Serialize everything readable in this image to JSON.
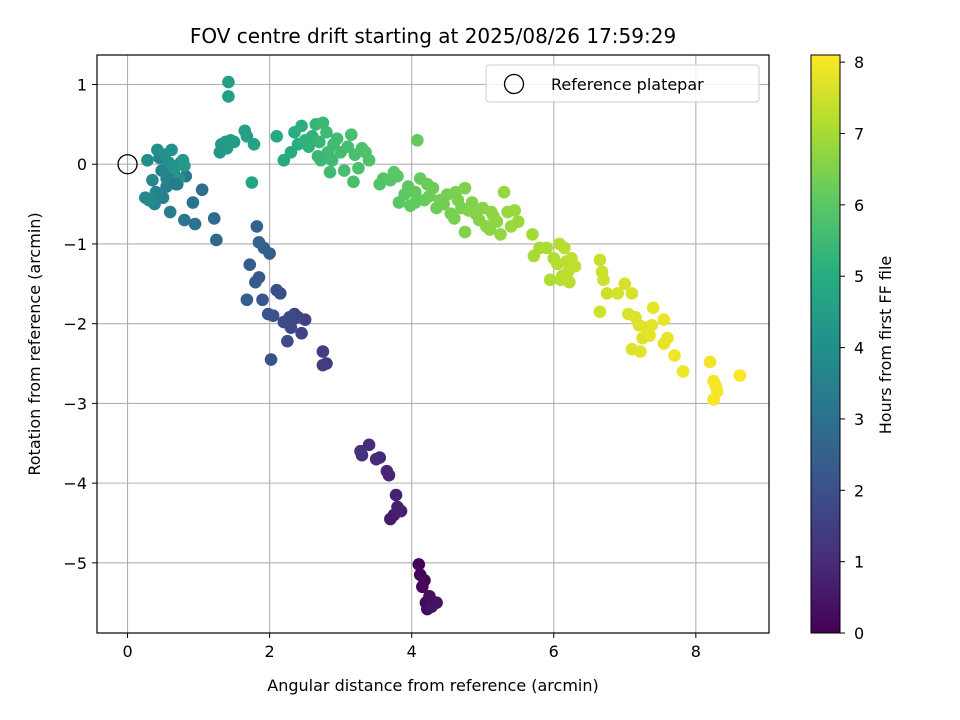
{
  "chart_data": {
    "type": "scatter",
    "title": "FOV centre drift starting at 2025/08/26 17:59:29",
    "xlabel": "Angular distance from reference (arcmin)",
    "ylabel": "Rotation from reference (arcmin)",
    "xlim": [
      -0.43,
      9.03
    ],
    "ylim": [
      -5.88,
      1.37
    ],
    "xticks": [
      0,
      2,
      4,
      6,
      8
    ],
    "yticks": [
      1,
      0,
      -1,
      -2,
      -3,
      -4,
      -5
    ],
    "xtick_labels": [
      "0",
      "2",
      "4",
      "6",
      "8"
    ],
    "ytick_labels": [
      "1",
      "0",
      "−1",
      "−2",
      "−3",
      "−4",
      "−5"
    ],
    "grid": true,
    "colormap": "viridis",
    "colorbar": {
      "label": "Hours from first FF file",
      "range": [
        0,
        8.1
      ],
      "ticks": [
        0,
        1,
        2,
        3,
        4,
        5,
        6,
        7,
        8
      ],
      "tick_labels": [
        "0",
        "1",
        "2",
        "3",
        "4",
        "5",
        "6",
        "7",
        "8"
      ]
    },
    "reference": {
      "x": 0,
      "y": 0,
      "label": "Reference platepar"
    },
    "legend": {
      "position": "top-right",
      "entries": [
        "Reference platepar"
      ]
    },
    "points": [
      [
        4.1,
        -5.02,
        0.05
      ],
      [
        4.12,
        -5.15,
        0.1
      ],
      [
        4.15,
        -5.3,
        0.15
      ],
      [
        4.2,
        -5.5,
        0.2
      ],
      [
        4.22,
        -5.58,
        0.25
      ],
      [
        4.25,
        -5.42,
        0.3
      ],
      [
        4.3,
        -5.52,
        0.35
      ],
      [
        4.35,
        -5.5,
        0.4
      ],
      [
        4.18,
        -5.22,
        0.12
      ],
      [
        4.28,
        -5.55,
        0.45
      ],
      [
        3.7,
        -4.45,
        0.6
      ],
      [
        3.75,
        -4.4,
        0.65
      ],
      [
        3.8,
        -4.3,
        0.7
      ],
      [
        3.85,
        -4.35,
        0.75
      ],
      [
        3.78,
        -4.15,
        0.8
      ],
      [
        3.68,
        -3.9,
        0.85
      ],
      [
        3.65,
        -3.85,
        0.9
      ],
      [
        3.55,
        -3.68,
        0.95
      ],
      [
        3.5,
        -3.7,
        1.0
      ],
      [
        3.4,
        -3.52,
        1.05
      ],
      [
        3.3,
        -3.65,
        1.1
      ],
      [
        3.28,
        -3.6,
        1.15
      ],
      [
        2.8,
        -2.5,
        1.4
      ],
      [
        2.75,
        -2.52,
        1.45
      ],
      [
        2.75,
        -2.35,
        1.5
      ],
      [
        2.5,
        -1.95,
        1.6
      ],
      [
        2.45,
        -2.12,
        1.65
      ],
      [
        2.4,
        -1.92,
        1.7
      ],
      [
        2.35,
        -1.88,
        1.75
      ],
      [
        2.3,
        -2.05,
        1.8
      ],
      [
        2.25,
        -2.22,
        1.85
      ],
      [
        2.2,
        -1.98,
        1.9
      ],
      [
        2.15,
        -1.62,
        1.95
      ],
      [
        2.1,
        -1.58,
        2.0
      ],
      [
        2.05,
        -1.9,
        2.05
      ],
      [
        2.02,
        -2.45,
        2.1
      ],
      [
        1.98,
        -1.88,
        2.15
      ],
      [
        1.9,
        -1.7,
        2.2
      ],
      [
        1.85,
        -1.42,
        2.25
      ],
      [
        1.8,
        -1.48,
        2.3
      ],
      [
        1.72,
        -1.26,
        2.35
      ],
      [
        1.68,
        -1.7,
        2.4
      ],
      [
        2.0,
        -1.12,
        2.45
      ],
      [
        1.92,
        -1.05,
        2.5
      ],
      [
        1.85,
        -0.98,
        2.55
      ],
      [
        1.82,
        -0.78,
        2.6
      ],
      [
        2.32,
        -1.95,
        1.72
      ],
      [
        2.28,
        -1.92,
        1.82
      ],
      [
        1.25,
        -0.95,
        2.75
      ],
      [
        1.22,
        -0.68,
        2.85
      ],
      [
        1.05,
        -0.32,
        2.95
      ],
      [
        0.92,
        -0.48,
        3.05
      ],
      [
        0.95,
        -0.75,
        3.1
      ],
      [
        0.8,
        -0.7,
        3.2
      ],
      [
        0.82,
        -0.15,
        3.25
      ],
      [
        0.75,
        0.02,
        3.3
      ],
      [
        0.7,
        -0.25,
        3.35
      ],
      [
        0.65,
        -0.1,
        3.4
      ],
      [
        0.6,
        -0.6,
        3.45
      ],
      [
        0.55,
        -0.28,
        3.5
      ],
      [
        0.5,
        -0.42,
        3.55
      ],
      [
        0.48,
        -0.08,
        3.6
      ],
      [
        0.45,
        0.08,
        3.65
      ],
      [
        0.4,
        -0.35,
        3.7
      ],
      [
        0.38,
        -0.5,
        3.75
      ],
      [
        0.35,
        -0.2,
        3.8
      ],
      [
        0.3,
        -0.45,
        3.85
      ],
      [
        0.25,
        -0.42,
        3.9
      ],
      [
        0.28,
        0.05,
        3.95
      ],
      [
        0.42,
        0.18,
        4.0
      ],
      [
        0.52,
        0.12,
        4.05
      ],
      [
        0.58,
        0.02,
        4.1
      ],
      [
        0.62,
        0.18,
        4.15
      ],
      [
        0.65,
        -0.05,
        4.2
      ],
      [
        0.72,
        -0.18,
        4.25
      ],
      [
        0.78,
        0.05,
        4.3
      ],
      [
        0.8,
        -0.02,
        4.35
      ],
      [
        0.55,
        -0.18,
        3.62
      ],
      [
        0.68,
        -0.25,
        3.38
      ],
      [
        1.3,
        0.15,
        4.3
      ],
      [
        1.32,
        0.25,
        4.35
      ],
      [
        1.38,
        0.28,
        4.4
      ],
      [
        1.4,
        0.2,
        4.45
      ],
      [
        1.45,
        0.3,
        4.5
      ],
      [
        1.5,
        0.28,
        4.52
      ],
      [
        1.42,
        0.85,
        4.55
      ],
      [
        1.42,
        1.03,
        4.58
      ],
      [
        1.65,
        0.42,
        4.6
      ],
      [
        1.68,
        0.35,
        4.62
      ],
      [
        1.78,
        0.25,
        4.65
      ],
      [
        1.75,
        -0.23,
        4.7
      ],
      [
        2.1,
        0.35,
        4.9
      ],
      [
        2.2,
        0.05,
        4.95
      ],
      [
        2.3,
        0.15,
        5.0
      ],
      [
        2.35,
        0.4,
        5.05
      ],
      [
        2.4,
        0.25,
        5.1
      ],
      [
        2.45,
        0.48,
        5.15
      ],
      [
        2.5,
        0.3,
        5.2
      ],
      [
        2.55,
        0.22,
        5.25
      ],
      [
        2.6,
        0.35,
        5.3
      ],
      [
        2.65,
        0.5,
        5.35
      ],
      [
        2.7,
        0.28,
        5.4
      ],
      [
        2.75,
        0.52,
        5.45
      ],
      [
        2.72,
        0.05,
        5.48
      ],
      [
        2.8,
        0.4,
        5.5
      ],
      [
        2.82,
        0.15,
        5.52
      ],
      [
        2.85,
        -0.1,
        5.55
      ],
      [
        2.9,
        0.25,
        5.58
      ],
      [
        2.95,
        0.32,
        5.6
      ],
      [
        3.0,
        0.15,
        5.62
      ],
      [
        3.05,
        -0.08,
        5.65
      ],
      [
        3.1,
        0.22,
        5.68
      ],
      [
        3.15,
        0.37,
        5.7
      ],
      [
        3.2,
        0.12,
        5.72
      ],
      [
        3.25,
        -0.05,
        5.75
      ],
      [
        3.3,
        0.2,
        5.78
      ],
      [
        3.35,
        0.15,
        5.8
      ],
      [
        3.4,
        0.05,
        5.82
      ],
      [
        3.18,
        -0.22,
        5.72
      ],
      [
        3.55,
        -0.25,
        5.85
      ],
      [
        3.6,
        -0.18,
        5.88
      ],
      [
        2.68,
        0.1,
        5.42
      ],
      [
        2.88,
        0.05,
        5.54
      ],
      [
        3.7,
        -0.2,
        5.95
      ],
      [
        3.75,
        -0.1,
        6.0
      ],
      [
        3.8,
        -0.15,
        6.02
      ],
      [
        3.82,
        -0.48,
        6.05
      ],
      [
        3.9,
        -0.38,
        6.08
      ],
      [
        3.95,
        -0.28,
        6.1
      ],
      [
        3.98,
        -0.52,
        6.12
      ],
      [
        4.05,
        -0.35,
        6.15
      ],
      [
        4.08,
        0.3,
        6.18
      ],
      [
        4.12,
        -0.18,
        6.2
      ],
      [
        4.18,
        -0.45,
        6.22
      ],
      [
        4.22,
        -0.25,
        6.25
      ],
      [
        4.25,
        -0.4,
        6.28
      ],
      [
        4.3,
        -0.3,
        6.3
      ],
      [
        4.35,
        -0.55,
        6.32
      ],
      [
        4.4,
        -0.45,
        6.35
      ],
      [
        4.45,
        -0.5,
        6.38
      ],
      [
        4.5,
        -0.38,
        6.4
      ],
      [
        4.55,
        -0.62,
        6.42
      ],
      [
        4.6,
        -0.68,
        6.45
      ],
      [
        4.65,
        -0.45,
        6.48
      ],
      [
        4.7,
        -0.55,
        6.5
      ],
      [
        4.75,
        -0.3,
        6.52
      ],
      [
        4.8,
        -0.58,
        6.55
      ],
      [
        4.85,
        -0.48,
        6.58
      ],
      [
        4.9,
        -0.62,
        6.6
      ],
      [
        4.95,
        -0.7,
        6.62
      ],
      [
        5.0,
        -0.55,
        6.65
      ],
      [
        5.05,
        -0.78,
        6.68
      ],
      [
        5.1,
        -0.82,
        6.7
      ],
      [
        5.15,
        -0.65,
        6.72
      ],
      [
        5.2,
        -0.72,
        6.75
      ],
      [
        5.25,
        -0.88,
        6.78
      ],
      [
        5.3,
        -0.35,
        6.8
      ],
      [
        5.35,
        -0.6,
        6.82
      ],
      [
        5.4,
        -0.78,
        6.85
      ],
      [
        5.45,
        -0.58,
        6.88
      ],
      [
        5.5,
        -0.72,
        6.9
      ],
      [
        4.75,
        -0.85,
        6.55
      ],
      [
        4.62,
        -0.35,
        6.46
      ],
      [
        5.12,
        -0.6,
        6.71
      ],
      [
        4.05,
        -0.48,
        6.14
      ],
      [
        5.7,
        -0.88,
        7.0
      ],
      [
        5.72,
        -1.15,
        7.05
      ],
      [
        5.8,
        -1.05,
        7.08
      ],
      [
        5.9,
        -1.05,
        7.1
      ],
      [
        5.95,
        -1.45,
        7.12
      ],
      [
        6.0,
        -1.18,
        7.15
      ],
      [
        6.05,
        -1.25,
        7.18
      ],
      [
        6.08,
        -1.0,
        7.2
      ],
      [
        6.12,
        -1.4,
        7.22
      ],
      [
        6.15,
        -1.05,
        7.25
      ],
      [
        6.18,
        -1.22,
        7.28
      ],
      [
        6.22,
        -1.48,
        7.3
      ],
      [
        6.25,
        -1.18,
        7.32
      ],
      [
        6.3,
        -1.28,
        7.35
      ],
      [
        6.1,
        -1.45,
        7.24
      ],
      [
        6.2,
        -1.35,
        7.29
      ],
      [
        6.65,
        -1.2,
        7.45
      ],
      [
        6.68,
        -1.35,
        7.48
      ],
      [
        6.7,
        -1.45,
        7.5
      ],
      [
        6.75,
        -1.62,
        7.52
      ],
      [
        6.65,
        -1.85,
        7.55
      ],
      [
        6.9,
        -1.62,
        7.58
      ],
      [
        7.0,
        -1.5,
        7.6
      ],
      [
        7.05,
        -1.88,
        7.62
      ],
      [
        7.1,
        -1.62,
        7.65
      ],
      [
        7.15,
        -1.92,
        7.68
      ],
      [
        7.2,
        -2.02,
        7.7
      ],
      [
        7.25,
        -2.18,
        7.72
      ],
      [
        7.3,
        -2.05,
        7.75
      ],
      [
        7.35,
        -2.15,
        7.78
      ],
      [
        7.1,
        -2.32,
        7.7
      ],
      [
        7.22,
        -2.35,
        7.73
      ],
      [
        7.4,
        -1.8,
        7.8
      ],
      [
        7.55,
        -2.25,
        7.82
      ],
      [
        7.6,
        -2.18,
        7.85
      ],
      [
        7.55,
        -1.95,
        7.88
      ],
      [
        7.7,
        -2.4,
        7.9
      ],
      [
        7.82,
        -2.6,
        7.92
      ],
      [
        8.2,
        -2.48,
        7.95
      ],
      [
        8.25,
        -2.72,
        7.98
      ],
      [
        8.3,
        -2.85,
        8.0
      ],
      [
        8.25,
        -2.95,
        8.02
      ],
      [
        8.62,
        -2.65,
        8.05
      ],
      [
        8.28,
        -2.78,
        8.03
      ],
      [
        7.38,
        -2.02,
        7.79
      ]
    ]
  }
}
